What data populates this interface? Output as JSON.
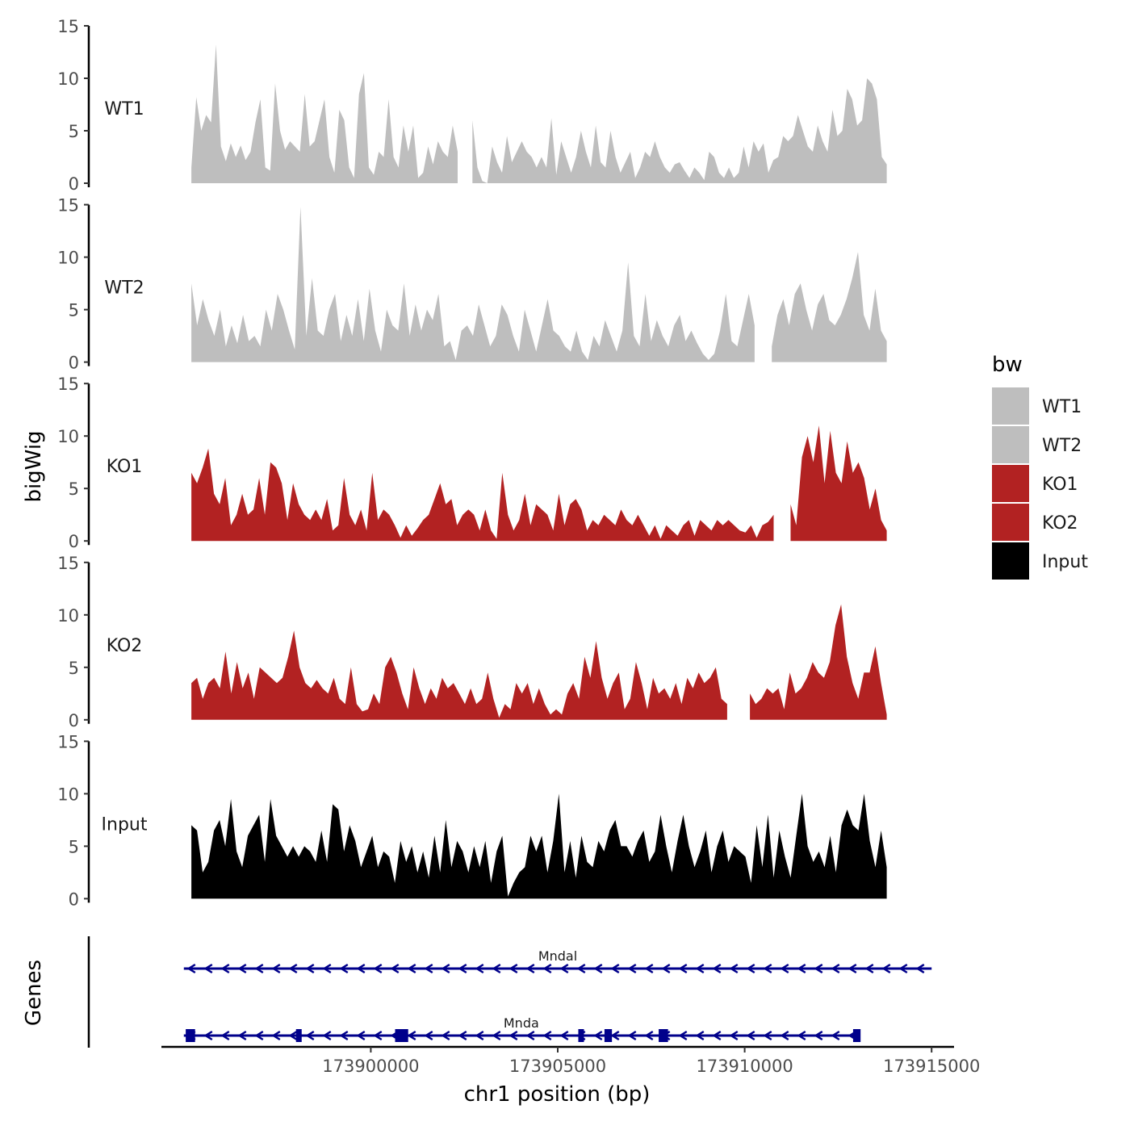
{
  "chart_data": {
    "type": "area",
    "x_axis": {
      "label": "chr1 position (bp)",
      "range": [
        173894400,
        173915600
      ],
      "ticks": [
        173900000,
        173905000,
        173910000,
        173915000
      ],
      "tick_labels": [
        "173900000",
        "173905000",
        "173910000",
        "173915000"
      ]
    },
    "y_axis": {
      "label": "bigWig",
      "range": [
        0,
        15
      ],
      "ticks": [
        0,
        5,
        10,
        15
      ],
      "tick_labels": [
        "0",
        "5",
        "10",
        "15"
      ]
    },
    "legend": {
      "title": "bw",
      "position": "right",
      "entries": [
        {
          "label": "WT1",
          "color": "#bebebe"
        },
        {
          "label": "WT2",
          "color": "#bebebe"
        },
        {
          "label": "KO1",
          "color": "#b22222"
        },
        {
          "label": "KO2",
          "color": "#b22222"
        },
        {
          "label": "Input",
          "color": "#000000"
        }
      ]
    },
    "tracks": [
      {
        "name": "WT1",
        "color": "#bebebe",
        "x_start": 173895200,
        "x_end": 173913800,
        "values": [
          1.5,
          8.2,
          5.0,
          6.5,
          5.8,
          13.2,
          3.5,
          2.1,
          3.8,
          2.5,
          3.6,
          2.2,
          3.0,
          5.8,
          8.0,
          1.5,
          1.2,
          9.5,
          5.0,
          3.2,
          4.0,
          3.5,
          3.0,
          8.5,
          3.5,
          4.0,
          6.0,
          8.0,
          2.5,
          1.0,
          7.0,
          6.0,
          1.5,
          0.5,
          8.5,
          10.5,
          1.5,
          0.8,
          3.0,
          2.5,
          8.0,
          2.5,
          1.5,
          5.5,
          3.0,
          5.5,
          0.5,
          1.0,
          3.5,
          1.8,
          4.0,
          3.0,
          2.5,
          5.5,
          3.0,
          2.0,
          5.8,
          6.0,
          1.5,
          0.2,
          0.0,
          3.5,
          2.0,
          1.0,
          4.5,
          2.0,
          3.0,
          4.0,
          3.0,
          2.5,
          1.5,
          2.5,
          1.5,
          6.2,
          0.8,
          4.0,
          2.5,
          1.0,
          2.5,
          5.0,
          3.0,
          1.5,
          5.5,
          2.0,
          1.5,
          5.0,
          2.5,
          1.0,
          2.0,
          3.0,
          0.5,
          1.5,
          3.0,
          2.5,
          4.0,
          2.5,
          1.5,
          1.0,
          1.8,
          2.0,
          1.2,
          0.5,
          1.5,
          1.0,
          0.3,
          3.0,
          2.5,
          1.0,
          0.5,
          1.5,
          0.5,
          1.0,
          3.5,
          1.5,
          4.0,
          3.0,
          3.8,
          1.0,
          2.2,
          2.5,
          4.5,
          4.0,
          4.5,
          6.5,
          5.0,
          3.5,
          3.0,
          5.5,
          4.0,
          3.0,
          7.0,
          4.5,
          5.0,
          9.0,
          8.0,
          5.5,
          6.0,
          10.0,
          9.5,
          8.0,
          2.5,
          1.8
        ],
        "gaps": [
          [
            173902400,
            173902600
          ]
        ]
      },
      {
        "name": "WT2",
        "color": "#bebebe",
        "x_start": 173895200,
        "x_end": 173913800,
        "values": [
          7.5,
          3.5,
          6.0,
          4.0,
          2.5,
          5.0,
          1.5,
          3.5,
          1.8,
          4.5,
          2.0,
          2.5,
          1.5,
          5.0,
          3.0,
          6.5,
          5.0,
          3.0,
          1.2,
          14.8,
          2.5,
          8.0,
          3.0,
          2.5,
          5.0,
          6.5,
          2.0,
          4.5,
          2.5,
          6.0,
          2.0,
          7.0,
          3.0,
          1.0,
          5.0,
          3.5,
          3.0,
          7.5,
          2.5,
          5.5,
          3.0,
          5.0,
          4.0,
          6.5,
          1.5,
          2.0,
          0.2,
          3.0,
          3.5,
          2.5,
          5.5,
          3.5,
          1.5,
          2.5,
          5.5,
          4.5,
          2.5,
          1.0,
          5.0,
          3.0,
          1.0,
          3.5,
          6.0,
          3.0,
          2.5,
          1.5,
          1.0,
          3.0,
          1.0,
          0.2,
          2.5,
          1.5,
          4.0,
          2.5,
          1.0,
          3.0,
          9.5,
          2.5,
          1.5,
          6.5,
          2.0,
          4.0,
          2.5,
          1.5,
          3.5,
          4.5,
          2.0,
          3.0,
          1.8,
          0.8,
          0.2,
          0.8,
          3.0,
          6.5,
          2.0,
          1.5,
          4.0,
          6.5,
          3.5,
          2.0,
          3.5,
          1.5,
          4.5,
          6.0,
          3.5,
          6.5,
          7.5,
          5.0,
          3.0,
          5.5,
          6.5,
          4.0,
          3.5,
          4.5,
          6.0,
          8.0,
          10.5,
          4.5,
          3.0,
          7.0,
          3.0,
          2.0
        ],
        "gaps": [
          [
            173910400,
            173910600
          ]
        ]
      },
      {
        "name": "KO1",
        "color": "#b22222",
        "x_start": 173895200,
        "x_end": 173913800,
        "values": [
          6.5,
          5.5,
          7.0,
          8.8,
          4.5,
          3.5,
          6.0,
          1.5,
          2.5,
          4.5,
          2.5,
          3.0,
          6.0,
          2.5,
          7.5,
          7.0,
          5.5,
          2.0,
          5.5,
          3.5,
          2.5,
          2.0,
          3.0,
          2.0,
          4.0,
          1.0,
          1.5,
          6.0,
          2.5,
          1.5,
          3.0,
          1.0,
          6.5,
          2.0,
          3.0,
          2.5,
          1.5,
          0.3,
          1.5,
          0.5,
          1.2,
          2.0,
          2.5,
          4.0,
          5.5,
          3.5,
          4.0,
          1.5,
          2.5,
          3.0,
          2.5,
          1.0,
          3.0,
          1.0,
          0.2,
          6.5,
          2.5,
          1.0,
          2.0,
          4.5,
          1.5,
          3.5,
          3.0,
          2.5,
          1.0,
          4.5,
          1.5,
          3.5,
          4.0,
          3.0,
          1.0,
          2.0,
          1.5,
          2.5,
          2.0,
          1.5,
          3.0,
          2.0,
          1.5,
          2.5,
          1.5,
          0.5,
          1.5,
          0.2,
          1.5,
          1.0,
          0.5,
          1.5,
          2.0,
          0.5,
          2.0,
          1.5,
          1.0,
          2.0,
          1.5,
          2.0,
          1.5,
          1.0,
          0.8,
          1.5,
          0.3,
          1.5,
          1.8,
          2.5,
          3.0,
          6.5,
          3.5,
          1.5,
          8.0,
          10.0,
          7.5,
          11.0,
          5.5,
          10.5,
          6.5,
          5.5,
          9.5,
          6.5,
          7.5,
          6.0,
          3.0,
          5.0,
          2.0,
          1.0
        ],
        "gaps": [
          [
            173910800,
            173911200
          ]
        ]
      },
      {
        "name": "KO2",
        "color": "#b22222",
        "x_start": 173895200,
        "x_end": 173913800,
        "values": [
          3.5,
          4.0,
          2.0,
          3.5,
          4.0,
          3.0,
          6.5,
          2.5,
          5.5,
          3.0,
          4.5,
          2.0,
          5.0,
          4.5,
          4.0,
          3.5,
          4.0,
          6.0,
          8.5,
          5.0,
          3.5,
          3.0,
          3.8,
          3.0,
          2.5,
          4.0,
          2.0,
          1.5,
          5.0,
          1.5,
          0.8,
          1.0,
          2.5,
          1.5,
          5.0,
          6.0,
          4.5,
          2.5,
          1.0,
          5.0,
          3.0,
          1.5,
          3.0,
          2.0,
          4.0,
          3.0,
          3.5,
          2.5,
          1.5,
          3.0,
          1.5,
          2.0,
          4.5,
          2.0,
          0.2,
          1.5,
          1.0,
          3.5,
          2.5,
          3.5,
          1.5,
          3.0,
          1.5,
          0.5,
          1.0,
          0.5,
          2.5,
          3.5,
          2.0,
          6.0,
          4.0,
          7.5,
          4.0,
          2.0,
          3.5,
          4.5,
          1.0,
          2.0,
          5.5,
          3.5,
          1.0,
          4.0,
          2.5,
          3.0,
          2.0,
          3.5,
          1.5,
          4.0,
          3.0,
          4.5,
          3.5,
          4.0,
          5.0,
          2.0,
          1.5,
          0.8,
          1.5,
          0.5,
          2.5,
          1.5,
          2.0,
          3.0,
          2.5,
          3.0,
          1.0,
          4.5,
          2.5,
          3.0,
          4.0,
          5.5,
          4.5,
          4.0,
          5.5,
          9.0,
          11.0,
          6.0,
          3.5,
          2.0,
          4.5,
          4.5,
          7.0,
          3.5,
          0.5
        ],
        "gaps": [
          [
            173909600,
            173910000
          ]
        ]
      },
      {
        "name": "Input",
        "color": "#000000",
        "x_start": 173895200,
        "x_end": 173913800,
        "values": [
          7.0,
          6.5,
          2.5,
          3.5,
          6.5,
          7.5,
          5.0,
          9.5,
          4.5,
          3.0,
          6.0,
          7.0,
          8.0,
          3.5,
          9.5,
          6.0,
          5.0,
          4.0,
          5.0,
          4.0,
          5.0,
          4.5,
          3.5,
          6.5,
          3.5,
          9.0,
          8.5,
          4.5,
          7.0,
          5.5,
          3.0,
          4.5,
          6.0,
          3.0,
          4.5,
          4.0,
          1.5,
          5.5,
          3.5,
          5.0,
          2.5,
          4.5,
          2.0,
          6.0,
          2.5,
          7.5,
          3.0,
          5.5,
          4.5,
          2.5,
          5.0,
          3.0,
          5.5,
          1.5,
          4.5,
          6.0,
          0.2,
          1.5,
          2.5,
          3.0,
          6.0,
          4.5,
          6.0,
          2.5,
          5.5,
          10.0,
          2.5,
          5.5,
          2.0,
          6.0,
          3.5,
          3.0,
          5.5,
          4.5,
          6.5,
          7.5,
          5.0,
          5.0,
          4.0,
          5.5,
          6.5,
          3.5,
          4.5,
          8.0,
          5.0,
          2.5,
          5.5,
          8.0,
          5.0,
          3.0,
          4.5,
          6.5,
          2.5,
          5.0,
          6.5,
          3.5,
          5.0,
          4.5,
          4.0,
          1.5,
          7.0,
          3.0,
          8.0,
          2.0,
          6.5,
          4.0,
          2.0,
          6.0,
          10.0,
          5.0,
          3.5,
          4.5,
          3.0,
          6.0,
          2.5,
          7.0,
          8.5,
          7.0,
          6.5,
          10.0,
          5.5,
          3.0,
          6.5,
          3.0
        ],
        "gaps": []
      }
    ],
    "genes": {
      "label": "Genes",
      "items": [
        {
          "name": "Mndal",
          "strand": "-",
          "start": 173895000,
          "end": 173915000,
          "exons": []
        },
        {
          "name": "Mnda",
          "strand": "-",
          "start": 173895000,
          "end": 173913050,
          "exons": [
            [
              173895050,
              173895300
            ],
            [
              173898000,
              173898150
            ],
            [
              173900650,
              173901000
            ],
            [
              173905550,
              173905700
            ],
            [
              173906250,
              173906450
            ],
            [
              173907700,
              173907950
            ],
            [
              173912900,
              173913100
            ]
          ]
        }
      ]
    }
  }
}
